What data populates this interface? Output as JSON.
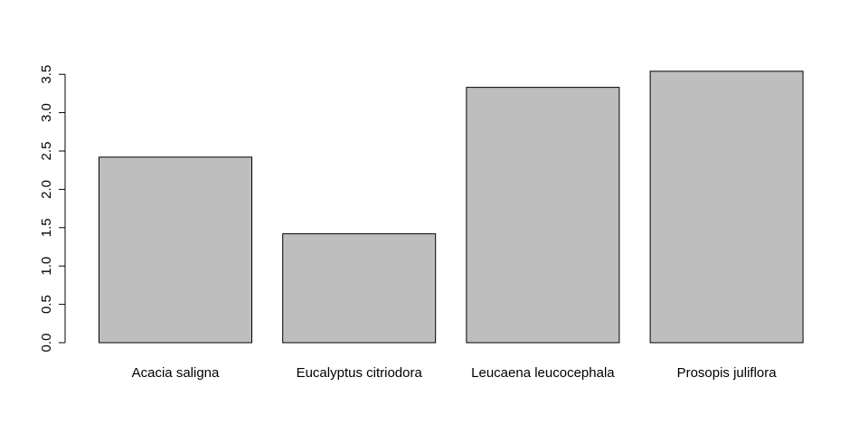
{
  "chart_data": {
    "type": "bar",
    "title": "",
    "xlabel": "",
    "ylabel": "",
    "categories": [
      "Acacia saligna",
      "Eucalyptus citriodora",
      "Leucaena leucocephala",
      "Prosopis juliflora"
    ],
    "values": [
      2.42,
      1.42,
      3.33,
      3.54
    ],
    "ylim": [
      0,
      3.5
    ],
    "yticks": [
      "0.0",
      "0.5",
      "1.0",
      "1.5",
      "2.0",
      "2.5",
      "3.0",
      "3.5"
    ],
    "grid": false,
    "legend": "none",
    "bar_color": "#bebebe",
    "border_color": "#000000"
  }
}
